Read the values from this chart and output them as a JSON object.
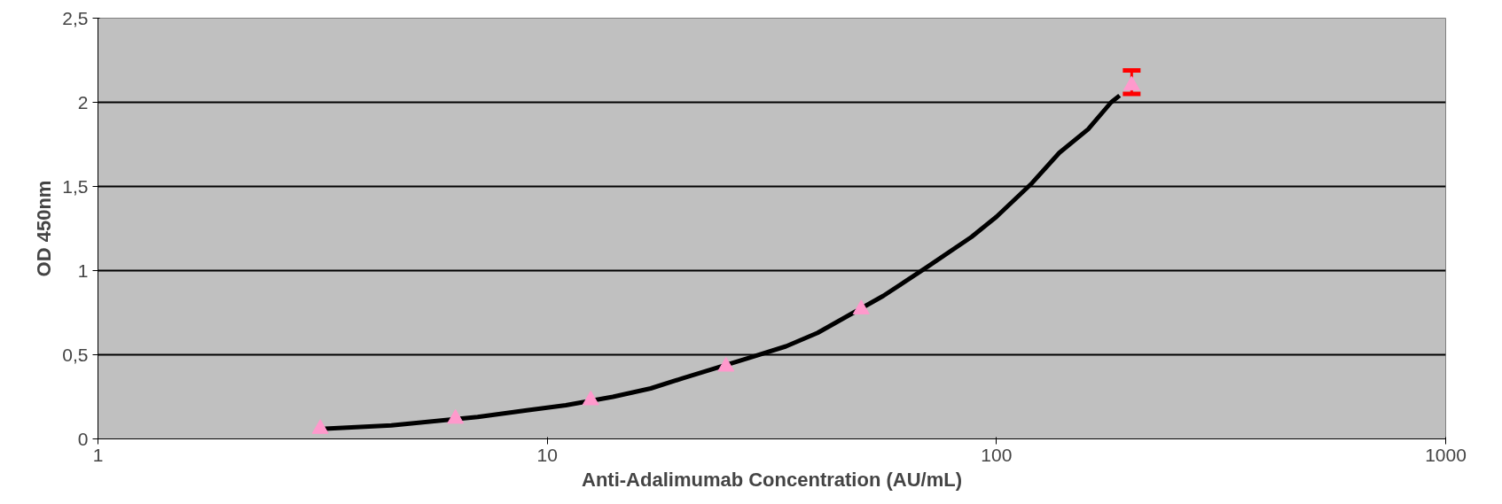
{
  "chart_data": {
    "type": "scatter",
    "xlabel": "Anti-Adalimumab Concentration (AU/mL)",
    "ylabel": "OD 450nm",
    "log": "x",
    "grid": "y",
    "marker": "triangle",
    "xlim": [
      1,
      1000
    ],
    "xticks": [
      1,
      10,
      100,
      1000
    ],
    "ylim": [
      0,
      2.5
    ],
    "yticks": [
      0,
      {
        "value": 0.5,
        "label": "0,5"
      },
      1,
      {
        "value": 1.5,
        "label": "1,5"
      },
      2,
      {
        "value": 2.5,
        "label": "2,5"
      }
    ],
    "series": [
      {
        "color": "#ff99cc",
        "x": [
          3.125,
          6.25,
          12.5,
          25,
          50,
          200
        ],
        "values": [
          0.06,
          0.12,
          0.23,
          0.43,
          0.77,
          2.1
        ],
        "errors": [
          null,
          null,
          null,
          null,
          null,
          [
            2.05,
            2.19
          ]
        ]
      },
      {
        "type": "line",
        "marker": "none",
        "color": "#000000",
        "x": [
          3.2,
          4.5,
          7,
          9,
          11,
          14,
          17,
          20,
          28,
          34,
          40,
          56,
          70,
          88,
          100,
          120,
          138,
          160,
          180,
          188
        ],
        "values": [
          0.06,
          0.08,
          0.13,
          0.17,
          0.2,
          0.25,
          0.3,
          0.36,
          0.48,
          0.55,
          0.63,
          0.85,
          1.02,
          1.2,
          1.32,
          1.52,
          1.7,
          1.84,
          2.0,
          2.04
        ]
      }
    ]
  }
}
